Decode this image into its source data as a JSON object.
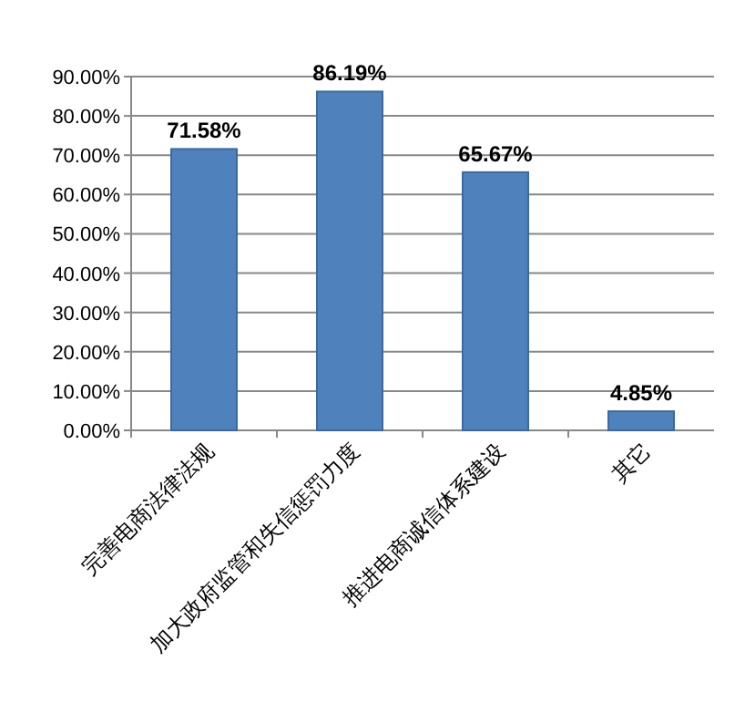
{
  "chart_data": {
    "type": "bar",
    "categories": [
      "完善电商法律法规",
      "加大政府监管和失信惩罚力度",
      "推进电商诚信体系建设",
      "其它"
    ],
    "values": [
      71.58,
      86.19,
      65.67,
      4.85
    ],
    "value_labels": [
      "71.58%",
      "86.19%",
      "65.67%",
      "4.85%"
    ],
    "color": "#4f81bd",
    "ylim": [
      0,
      90
    ],
    "yticks": [
      {
        "value": 0,
        "label": "0.00%"
      },
      {
        "value": 10,
        "label": "10.00%"
      },
      {
        "value": 20,
        "label": "20.00%"
      },
      {
        "value": 30,
        "label": "30.00%"
      },
      {
        "value": 40,
        "label": "40.00%"
      },
      {
        "value": 50,
        "label": "50.00%"
      },
      {
        "value": 60,
        "label": "60.00%"
      },
      {
        "value": 70,
        "label": "70.00%"
      },
      {
        "value": 80,
        "label": "80.00%"
      },
      {
        "value": 90,
        "label": "90.00%"
      }
    ],
    "grid": "y"
  }
}
